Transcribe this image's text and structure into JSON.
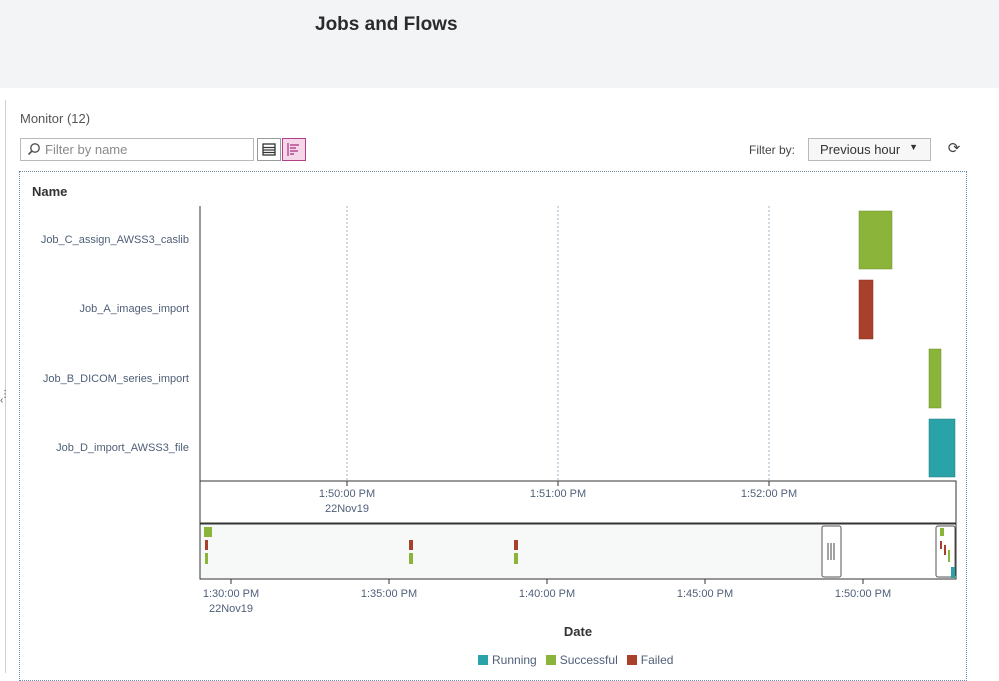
{
  "header": {
    "title": "Jobs and Flows"
  },
  "monitor": {
    "label": "Monitor (12)"
  },
  "search": {
    "placeholder": "Filter by name",
    "value": ""
  },
  "filter": {
    "label": "Filter by:",
    "selected": "Previous hour"
  },
  "table": {
    "name_header": "Name"
  },
  "colors": {
    "running": "#2aa3a8",
    "successful": "#8ab53a",
    "failed": "#a8402b",
    "accent": "#b0408a"
  },
  "jobs": [
    {
      "name": "Job_C_assign_AWSS3_caslib",
      "status": "Successful"
    },
    {
      "name": "Job_A_images_import",
      "status": "Failed"
    },
    {
      "name": "Job_B_DICOM_series_import",
      "status": "Successful"
    },
    {
      "name": "Job_D_import_AWSS3_file",
      "status": "Running"
    }
  ],
  "main_axis": {
    "ticks": [
      "1:50:00 PM",
      "1:51:00 PM",
      "1:52:00 PM"
    ],
    "date": "22Nov19"
  },
  "overview_axis": {
    "ticks": [
      "1:30:00 PM",
      "1:35:00 PM",
      "1:40:00 PM",
      "1:45:00 PM",
      "1:50:00 PM"
    ],
    "date": "22Nov19",
    "title": "Date"
  },
  "legend": [
    "Running",
    "Successful",
    "Failed"
  ]
}
